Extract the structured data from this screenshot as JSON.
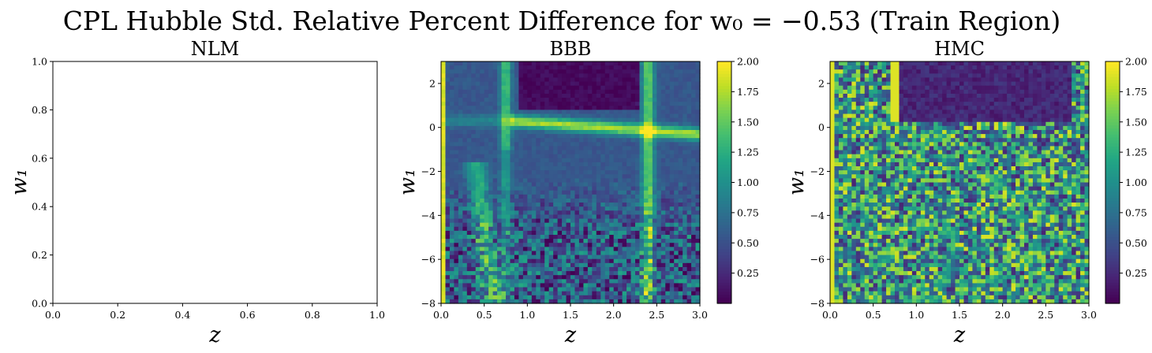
{
  "figure": {
    "title": "CPL Hubble Std. Relative Percent Difference for w₀ = −0.53 (Train Region)"
  },
  "chart_data": [
    {
      "type": "heatmap",
      "title": "NLM",
      "xlabel": "z",
      "ylabel": "w₁",
      "xlim": [
        0.0,
        1.0
      ],
      "ylim": [
        0.0,
        1.0
      ],
      "xticks": [
        "0.0",
        "0.2",
        "0.4",
        "0.6",
        "0.8",
        "1.0"
      ],
      "yticks": [
        "0.0",
        "0.2",
        "0.4",
        "0.6",
        "0.8",
        "1.0"
      ],
      "empty": true
    },
    {
      "type": "heatmap",
      "title": "BBB",
      "xlabel": "z",
      "ylabel": "w₁",
      "xlim": [
        0.0,
        3.0
      ],
      "ylim": [
        -8,
        3
      ],
      "xticks": [
        "0.0",
        "0.5",
        "1.0",
        "1.5",
        "2.0",
        "2.5",
        "3.0"
      ],
      "yticks": [
        "−8",
        "−6",
        "−4",
        "−2",
        "0",
        "2"
      ],
      "colorbar": {
        "min": 0.0,
        "max": 2.0,
        "colormap": "viridis",
        "ticks": [
          "0.25",
          "0.50",
          "0.75",
          "1.00",
          "1.25",
          "1.50",
          "1.75",
          "2.00"
        ]
      },
      "grid_shape": [
        60,
        60
      ],
      "pattern": "Bright ridge near w₁≈0 for z>0.8 and a vertical bright ridge near z≈2.4; low values (dark) for w₁>0 and 1<z<2.3; noisy mixed values for w₁<−3; high values at z<0.05."
    },
    {
      "type": "heatmap",
      "title": "HMC",
      "xlabel": "z",
      "ylabel": "w₁",
      "xlim": [
        0.0,
        3.0
      ],
      "ylim": [
        -8,
        3
      ],
      "xticks": [
        "0.0",
        "0.5",
        "1.0",
        "1.5",
        "2.0",
        "2.5",
        "3.0"
      ],
      "yticks": [
        "−8",
        "−6",
        "−4",
        "−2",
        "0",
        "2"
      ],
      "colorbar": {
        "min": 0.0,
        "max": 2.0,
        "colormap": "viridis",
        "ticks": [
          "0.25",
          "0.50",
          "0.75",
          "1.00",
          "1.25",
          "1.50",
          "1.75",
          "2.00"
        ]
      },
      "grid_shape": [
        60,
        60
      ],
      "pattern": "Dark (low) band for w₁>0 and z between 0.8 and 2.8; noisy mixed values everywhere else; high values at z<0.05 and a bright streak near z≈0.75 for w₁>0."
    }
  ]
}
